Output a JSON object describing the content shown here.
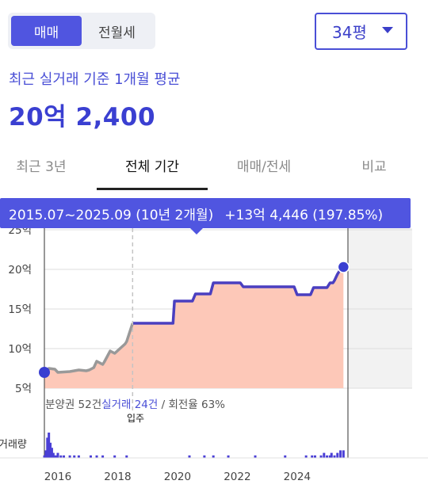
{
  "deal_toggle": {
    "options": [
      "매매",
      "전월세"
    ],
    "active_index": 0
  },
  "size_select": {
    "value": "34평"
  },
  "caption": "최근 실거래 기준 1개월 평균",
  "price": "20억 2,400",
  "tabs": {
    "items": [
      "최근 3년",
      "전체 기간",
      "매매/전세",
      "비교"
    ],
    "active_index": 1
  },
  "tooltip": {
    "period": "2015.07~2025.09 (10년 2개월)",
    "change": "+13억 4,446 (197.85%)"
  },
  "stats": {
    "presale": "분양권 52건",
    "real_deals": "실거래 24건",
    "separator": " / ",
    "turnover": "회전율 63%"
  },
  "move_in_label": "입주",
  "volume_label": "거래량",
  "colors": {
    "accent": "#4a4fd6",
    "line": "#4a3fc0",
    "area": "#fdc8b8",
    "grey_line": "#999999",
    "future_band": "#f2f2f2"
  },
  "chart_data": {
    "type": "line",
    "x_unit": "year",
    "y_ticks": [
      "25억",
      "20억",
      "15억",
      "10억",
      "5억"
    ],
    "y_tick_values": [
      25,
      20,
      15,
      10,
      5
    ],
    "ylim": [
      5,
      25
    ],
    "x_ticks": [
      "2016",
      "2018",
      "2020",
      "2022",
      "2024"
    ],
    "x_tick_values": [
      2016,
      2018,
      2020,
      2022,
      2024
    ],
    "xlim": [
      2015.55,
      2025.7
    ],
    "move_in_year": 2018.5,
    "ownership_change_year": 2018.5,
    "series": [
      {
        "x": [
          2015.55,
          2015.7,
          2015.9,
          2016.0,
          2016.4,
          2016.7,
          2016.95,
          2017.05,
          2017.2,
          2017.3,
          2017.5,
          2017.55,
          2017.75,
          2017.9,
          2018.25,
          2018.3,
          2018.5,
          2019.85,
          2019.9,
          2020.5,
          2020.6,
          2021.1,
          2021.2,
          2022.1,
          2022.2,
          2023.3,
          2023.4,
          2023.9,
          2024.0,
          2024.1,
          2024.2,
          2024.45,
          2024.55,
          2025.0,
          2025.1,
          2025.2,
          2025.25,
          2025.35,
          2025.45,
          2025.55
        ],
        "y": [
          7.0,
          7.5,
          7.4,
          7.0,
          7.1,
          7.3,
          7.2,
          7.3,
          7.6,
          8.4,
          8.0,
          8.3,
          9.7,
          9.4,
          10.6,
          10.9,
          13.2,
          13.2,
          16.0,
          16.0,
          16.9,
          16.9,
          18.3,
          18.3,
          17.8,
          17.8,
          17.8,
          17.8,
          16.8,
          16.8,
          16.8,
          16.8,
          17.7,
          17.7,
          18.3,
          18.3,
          18.6,
          19.4,
          20.0,
          20.3
        ]
      }
    ],
    "volume": {
      "x": [
        2015.55,
        2015.6,
        2015.65,
        2015.7,
        2015.75,
        2015.8,
        2015.85,
        2015.9,
        2015.95,
        2016.0,
        2016.1,
        2016.2,
        2016.4,
        2016.55,
        2016.7,
        2017.1,
        2017.3,
        2017.5,
        2017.9,
        2018.3,
        2020.4,
        2020.9,
        2021.2,
        2021.7,
        2022.6,
        2023.6,
        2024.3,
        2024.5,
        2024.6,
        2024.8,
        2024.9,
        2025.0,
        2025.1,
        2025.15,
        2025.25,
        2025.35,
        2025.45,
        2025.55
      ],
      "values": [
        1,
        3,
        8,
        10,
        6,
        4,
        2,
        1,
        1,
        2,
        1,
        1,
        1,
        1,
        1,
        1,
        1,
        1,
        1,
        1,
        1,
        1,
        1,
        1,
        1,
        1,
        1,
        1,
        1,
        1,
        2,
        1,
        1,
        2,
        1,
        2,
        3,
        3
      ]
    }
  }
}
